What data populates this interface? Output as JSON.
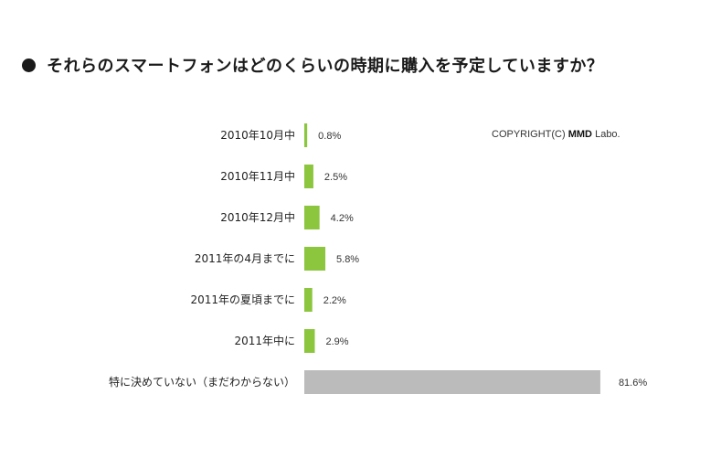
{
  "title": "それらのスマートフォンはどのくらいの時期に購入を予定していますか？",
  "copyright": {
    "prefix": "COPYRIGHT(C)",
    "brand": "MMD",
    "suffix": "Labo."
  },
  "colors": {
    "accent": "#8cc63f",
    "neutral": "#bbbbbb"
  },
  "chart_data": {
    "type": "bar",
    "orientation": "horizontal",
    "categories": [
      "2010年10月中",
      "2010年11月中",
      "2010年12月中",
      "2011年の4月までに",
      "2011年の夏頃までに",
      "2011年中に",
      "特に決めていない（まだわからない）"
    ],
    "values": [
      0.8,
      2.5,
      4.2,
      5.8,
      2.2,
      2.9,
      81.6
    ],
    "value_labels": [
      "0.8%",
      "2.5%",
      "4.2%",
      "5.8%",
      "2.2%",
      "2.9%",
      "81.6%"
    ],
    "unit": "%",
    "bar_colors": [
      "#8cc63f",
      "#8cc63f",
      "#8cc63f",
      "#8cc63f",
      "#8cc63f",
      "#8cc63f",
      "#bbbbbb"
    ],
    "xlim": [
      0,
      100
    ],
    "grid": false,
    "legend": "none",
    "xlabel": "",
    "ylabel": ""
  }
}
